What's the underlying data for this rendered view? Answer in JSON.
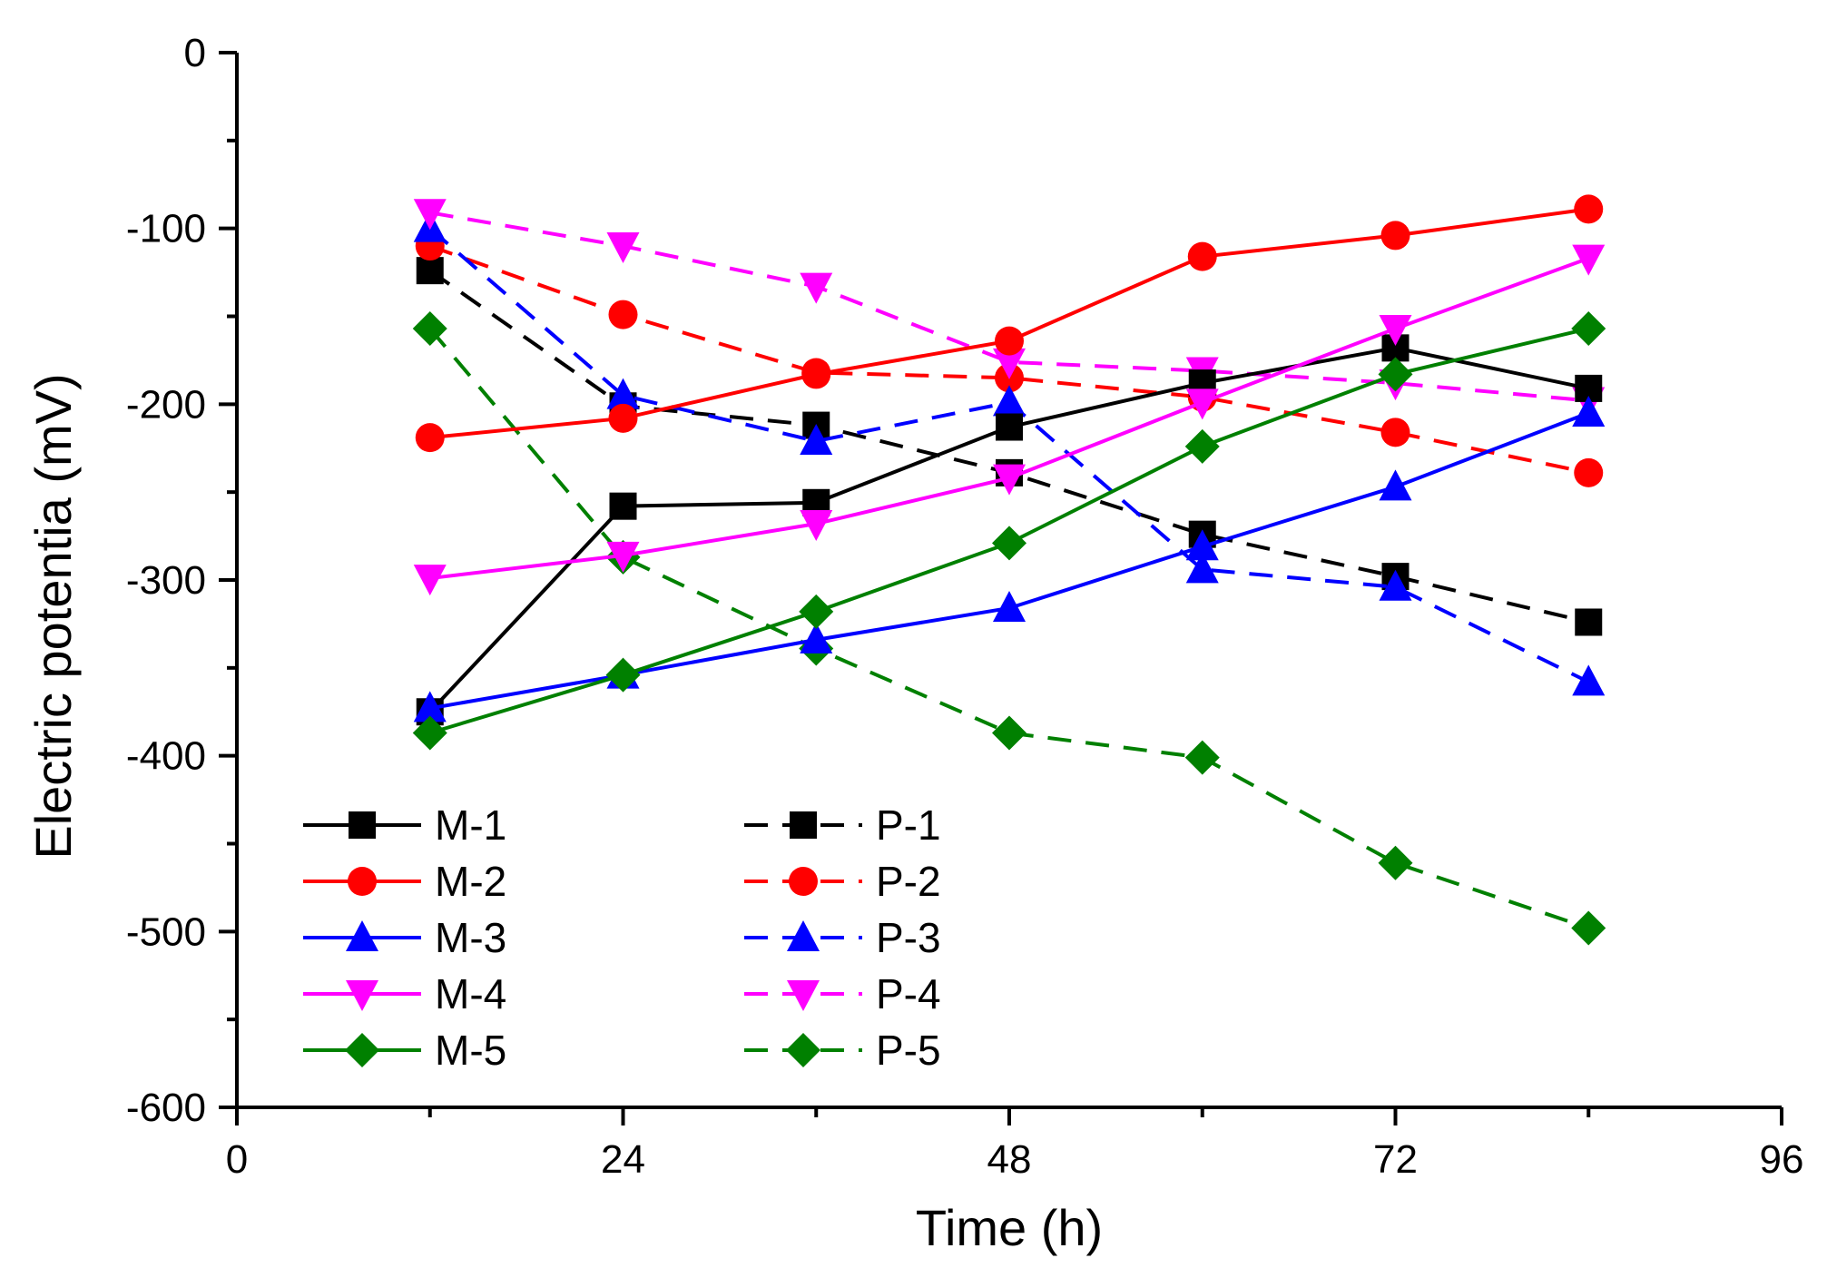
{
  "chart_data": {
    "type": "line",
    "xlabel": "Time (h)",
    "ylabel": "Electric potentia (mV)",
    "xlim": [
      0,
      96
    ],
    "ylim": [
      -600,
      0
    ],
    "xticks": [
      0,
      24,
      48,
      72,
      96
    ],
    "yticks": [
      0,
      -100,
      -200,
      -300,
      -400,
      -500,
      -600
    ],
    "xtick_labels": [
      "0",
      "24",
      "48",
      "72",
      "96"
    ],
    "ytick_labels": [
      "0",
      "-100",
      "-200",
      "-300",
      "-400",
      "-500",
      "-600"
    ],
    "grid": false,
    "legend_position": "bottom-left",
    "series": [
      {
        "name": "M-1",
        "color": "#000000",
        "dash": "solid",
        "marker": "square",
        "x": [
          12,
          24,
          36,
          48,
          60,
          72,
          84
        ],
        "y": [
          -375,
          -258,
          -256,
          -213,
          -188,
          -168,
          -191
        ]
      },
      {
        "name": "M-2",
        "color": "#ff0000",
        "dash": "solid",
        "marker": "circle",
        "x": [
          12,
          24,
          36,
          48,
          60,
          72,
          84
        ],
        "y": [
          -219,
          -208,
          -183,
          -164,
          -116,
          -104,
          -89
        ]
      },
      {
        "name": "M-3",
        "color": "#0000ff",
        "dash": "solid",
        "marker": "triangle-up",
        "x": [
          12,
          24,
          36,
          48,
          60,
          72,
          84
        ],
        "y": [
          -373,
          -354,
          -334,
          -316,
          -281,
          -247,
          -205
        ]
      },
      {
        "name": "M-4",
        "color": "#ff00ff",
        "dash": "solid",
        "marker": "triangle-down",
        "x": [
          12,
          24,
          36,
          48,
          60,
          72,
          84
        ],
        "y": [
          -299,
          -286,
          -268,
          -242,
          -199,
          -157,
          -117
        ]
      },
      {
        "name": "M-5",
        "color": "#008000",
        "dash": "solid",
        "marker": "diamond",
        "x": [
          12,
          24,
          36,
          48,
          60,
          72,
          84
        ],
        "y": [
          -387,
          -354,
          -318,
          -279,
          -224,
          -183,
          -157
        ]
      },
      {
        "name": "P-1",
        "color": "#000000",
        "dash": "dashed",
        "marker": "square",
        "x": [
          12,
          24,
          36,
          48,
          60,
          72,
          84
        ],
        "y": [
          -124,
          -201,
          -212,
          -239,
          -274,
          -298,
          -324
        ]
      },
      {
        "name": "P-2",
        "color": "#ff0000",
        "dash": "dashed",
        "marker": "circle",
        "x": [
          12,
          24,
          36,
          48,
          60,
          72,
          84
        ],
        "y": [
          -110,
          -149,
          -182,
          -185,
          -196,
          -216,
          -239
        ]
      },
      {
        "name": "P-3",
        "color": "#0000ff",
        "dash": "dashed",
        "marker": "triangle-up",
        "x": [
          12,
          24,
          36,
          48,
          60,
          72,
          84
        ],
        "y": [
          -100,
          -195,
          -221,
          -199,
          -294,
          -304,
          -358
        ]
      },
      {
        "name": "P-4",
        "color": "#ff00ff",
        "dash": "dashed",
        "marker": "triangle-down",
        "x": [
          12,
          24,
          36,
          48,
          60,
          72,
          84
        ],
        "y": [
          -91,
          -110,
          -133,
          -176,
          -181,
          -188,
          -198
        ]
      },
      {
        "name": "P-5",
        "color": "#008000",
        "dash": "dashed",
        "marker": "diamond",
        "x": [
          12,
          24,
          36,
          48,
          60,
          72,
          84
        ],
        "y": [
          -157,
          -287,
          -339,
          -387,
          -401,
          -461,
          -498
        ]
      }
    ]
  }
}
